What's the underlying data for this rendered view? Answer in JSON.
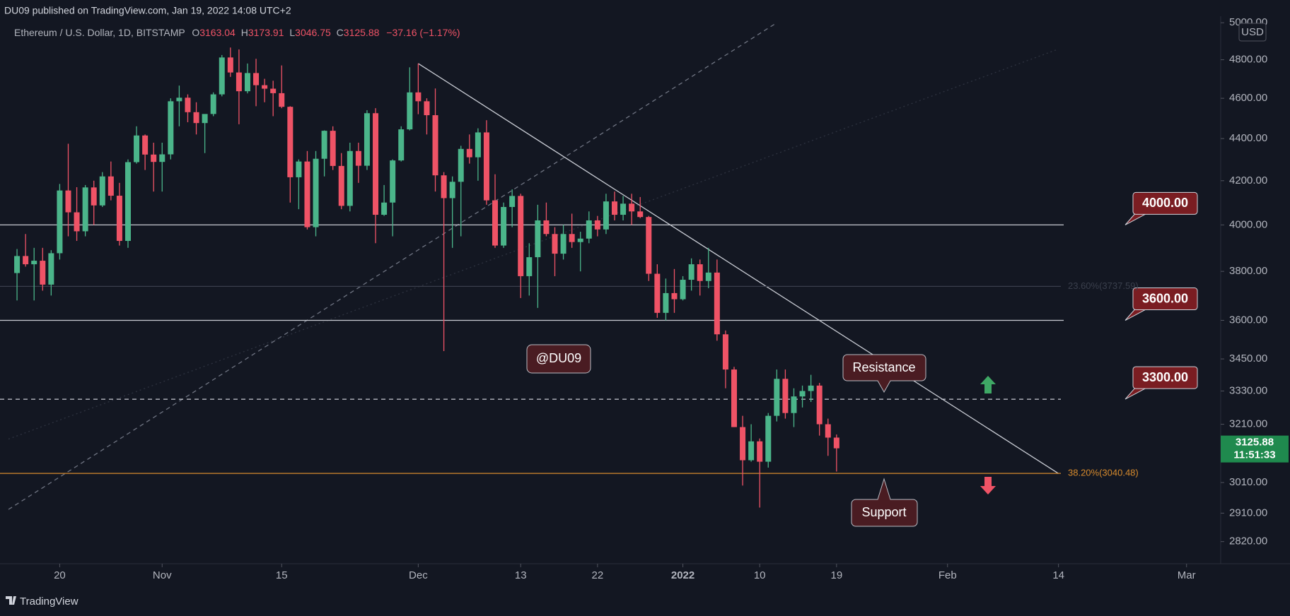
{
  "chart_data": {
    "type": "candlestick",
    "publisher_line": "DU09 published on TradingView.com, Jan 19, 2022 14:08 UTC+2",
    "symbol": "Ethereum / U.S. Dollar, 1D, BITSTAMP",
    "ohlc_letters": [
      "O",
      "H",
      "L",
      "C"
    ],
    "change": "−37.16 (−1.17%)",
    "currency": "USD",
    "countdown": "11:51:33",
    "footer": "TradingView",
    "log_scale": true,
    "grid": false,
    "up_color": "#4bb58a",
    "down_color": "#ef5366",
    "x": [
      "Oct 15",
      "Oct 16",
      "Oct 17",
      "Oct 18",
      "Oct 19",
      "Oct 20",
      "Oct 21",
      "Oct 22",
      "Oct 23",
      "Oct 24",
      "Oct 25",
      "Oct 26",
      "Oct 27",
      "Oct 28",
      "Oct 29",
      "Oct 30",
      "Oct 31",
      "Nov 1",
      "Nov 2",
      "Nov 3",
      "Nov 4",
      "Nov 5",
      "Nov 6",
      "Nov 7",
      "Nov 8",
      "Nov 9",
      "Nov 10",
      "Nov 11",
      "Nov 12",
      "Nov 13",
      "Nov 14",
      "Nov 15",
      "Nov 16",
      "Nov 17",
      "Nov 18",
      "Nov 19",
      "Nov 20",
      "Nov 21",
      "Nov 22",
      "Nov 23",
      "Nov 24",
      "Nov 25",
      "Nov 26",
      "Nov 27",
      "Nov 28",
      "Nov 29",
      "Nov 30",
      "Dec 1",
      "Dec 2",
      "Dec 3",
      "Dec 4",
      "Dec 5",
      "Dec 6",
      "Dec 7",
      "Dec 8",
      "Dec 9",
      "Dec 10",
      "Dec 11",
      "Dec 12",
      "Dec 13",
      "Dec 14",
      "Dec 15",
      "Dec 16",
      "Dec 17",
      "Dec 18",
      "Dec 19",
      "Dec 20",
      "Dec 21",
      "Dec 22",
      "Dec 23",
      "Dec 24",
      "Dec 25",
      "Dec 26",
      "Dec 27",
      "Dec 28",
      "Dec 29",
      "Dec 30",
      "Dec 31",
      "Jan 1",
      "Jan 2",
      "Jan 3",
      "Jan 4",
      "Jan 5",
      "Jan 6",
      "Jan 7",
      "Jan 8",
      "Jan 9",
      "Jan 10",
      "Jan 11",
      "Jan 12",
      "Jan 13",
      "Jan 14",
      "Jan 15",
      "Jan 16",
      "Jan 17",
      "Jan 18",
      "Jan 19"
    ],
    "open": [
      3793,
      3865,
      3830,
      3845,
      3745,
      3877,
      4155,
      4056,
      3972,
      4169,
      4087,
      4220,
      4131,
      3930,
      4287,
      4415,
      4323,
      4288,
      4324,
      4585,
      4603,
      4530,
      4476,
      4521,
      4620,
      4812,
      4733,
      4636,
      4730,
      4667,
      4649,
      4626,
      4557,
      4216,
      4290,
      3990,
      4303,
      4438,
      4269,
      4085,
      4340,
      4270,
      4525,
      4045,
      4100,
      4295,
      4445,
      4630,
      4585,
      4515,
      4225,
      4120,
      4195,
      4350,
      4310,
      4430,
      4110,
      3910,
      4080,
      4130,
      3780,
      3860,
      4020,
      3960,
      3875,
      3960,
      3925,
      3940,
      4020,
      3980,
      4105,
      4045,
      4095,
      4060,
      4035,
      3790,
      3630,
      3710,
      3685,
      3765,
      3830,
      3760,
      3795,
      3545,
      3410,
      3200,
      3085,
      3150,
      3080,
      3240,
      3375,
      3250,
      3310,
      3330,
      3350,
      3210,
      3163.04
    ],
    "high": [
      3895,
      3960,
      3900,
      3900,
      3890,
      4185,
      4375,
      4170,
      4180,
      4200,
      4240,
      4290,
      4190,
      4300,
      4460,
      4420,
      4380,
      4380,
      4600,
      4665,
      4620,
      4580,
      4520,
      4630,
      4825,
      4865,
      4855,
      4780,
      4805,
      4700,
      4690,
      4770,
      4560,
      4300,
      4340,
      4340,
      4440,
      4460,
      4330,
      4380,
      4380,
      4540,
      4550,
      4180,
      4300,
      4460,
      4760,
      4780,
      4600,
      4650,
      4240,
      4220,
      4365,
      4420,
      4450,
      4490,
      4230,
      4100,
      4160,
      4140,
      3920,
      4090,
      4100,
      3990,
      4000,
      4050,
      3970,
      4060,
      4040,
      4140,
      4150,
      4130,
      4140,
      4125,
      4040,
      3830,
      3770,
      3810,
      3780,
      3855,
      3850,
      3900,
      3850,
      3560,
      3420,
      3240,
      3210,
      3160,
      3250,
      3410,
      3410,
      3340,
      3350,
      3390,
      3360,
      3230,
      3173.91
    ],
    "low": [
      3680,
      3820,
      3680,
      3720,
      3700,
      3850,
      3950,
      3930,
      3950,
      4000,
      4080,
      4110,
      3910,
      3900,
      4280,
      4250,
      4150,
      4150,
      4300,
      4460,
      4480,
      4420,
      4330,
      4510,
      4610,
      4710,
      4470,
      4625,
      4560,
      4580,
      4510,
      4550,
      4100,
      4070,
      3980,
      3950,
      4220,
      4250,
      4070,
      4060,
      4190,
      4250,
      3920,
      4040,
      3950,
      4290,
      4440,
      4520,
      4420,
      4150,
      3480,
      3900,
      3950,
      4280,
      4200,
      4090,
      3900,
      3900,
      3990,
      3690,
      3700,
      3650,
      3950,
      3780,
      3850,
      3900,
      3800,
      3920,
      3950,
      3960,
      4020,
      4020,
      4000,
      4030,
      3760,
      3610,
      3600,
      3630,
      3680,
      3720,
      3700,
      3730,
      3520,
      3340,
      3200,
      3000,
      3080,
      2928,
      3060,
      3220,
      3230,
      3200,
      3270,
      3290,
      3170,
      3100,
      3046.75
    ],
    "close": [
      3865,
      3830,
      3845,
      3745,
      3877,
      4155,
      4056,
      3972,
      4169,
      4087,
      4220,
      4131,
      3930,
      4287,
      4415,
      4323,
      4288,
      4324,
      4585,
      4603,
      4530,
      4476,
      4521,
      4620,
      4812,
      4733,
      4636,
      4730,
      4667,
      4649,
      4626,
      4557,
      4216,
      4290,
      3990,
      4303,
      4438,
      4269,
      4085,
      4340,
      4270,
      4525,
      4045,
      4100,
      4295,
      4445,
      4630,
      4585,
      4515,
      4225,
      4120,
      4195,
      4350,
      4310,
      4430,
      4110,
      3910,
      4080,
      4130,
      3780,
      3860,
      4020,
      3960,
      3875,
      3960,
      3925,
      3940,
      4020,
      3980,
      4105,
      4045,
      4095,
      4060,
      4035,
      3790,
      3630,
      3710,
      3685,
      3765,
      3830,
      3760,
      3795,
      3545,
      3410,
      3200,
      3085,
      3150,
      3080,
      3240,
      3375,
      3250,
      3310,
      3330,
      3350,
      3210,
      3163,
      3125.88
    ],
    "xlim": [
      "Oct 14",
      "Mar 5"
    ],
    "xticks": [
      {
        "value": "Oct 20",
        "label": "20"
      },
      {
        "value": "Nov 1",
        "label": "Nov"
      },
      {
        "value": "Nov 15",
        "label": "15"
      },
      {
        "value": "Dec 1",
        "label": "Dec"
      },
      {
        "value": "Dec 13",
        "label": "13"
      },
      {
        "value": "Dec 22",
        "label": "22"
      },
      {
        "value": "Jan 1",
        "label": "2022"
      },
      {
        "value": "Jan 10",
        "label": "10"
      },
      {
        "value": "Jan 19",
        "label": "19"
      },
      {
        "value": "Feb 1",
        "label": "Feb"
      },
      {
        "value": "Feb 14",
        "label": "14"
      },
      {
        "value": "Mar 1",
        "label": "Mar"
      }
    ],
    "ylim": [
      2752,
      5036
    ],
    "yticks": [
      {
        "value": 5000,
        "label": "5000.00"
      },
      {
        "value": 4800,
        "label": "4800.00"
      },
      {
        "value": 4600,
        "label": "4600.00"
      },
      {
        "value": 4400,
        "label": "4400.00"
      },
      {
        "value": 4200,
        "label": "4200.00"
      },
      {
        "value": 4000,
        "label": "4000.00"
      },
      {
        "value": 3800,
        "label": "3800.00"
      },
      {
        "value": 3600,
        "label": "3600.00"
      },
      {
        "value": 3450,
        "label": "3450.00"
      },
      {
        "value": 3330,
        "label": "3330.00"
      },
      {
        "value": 3210,
        "label": "3210.00"
      },
      {
        "value": 3010,
        "label": "3010.00"
      },
      {
        "value": 2910,
        "label": "2910.00"
      },
      {
        "value": 2820,
        "label": "2820.00"
      }
    ],
    "levels": [
      {
        "value": 4000,
        "label": "4000.00",
        "style": "solid"
      },
      {
        "value": 3600,
        "label": "3600.00",
        "style": "solid"
      },
      {
        "value": 3300,
        "label": "3300.00",
        "style": "dashed"
      }
    ],
    "fib_levels": [
      {
        "value": 3040.48,
        "label": "38.20%(3040.48)",
        "color": "#d68a2d"
      },
      {
        "value": 3737.59,
        "label": "23.60%(3737.59)",
        "color": "#3a3f4c"
      }
    ],
    "trendlines": [
      {
        "start": {
          "x": "Dec 1",
          "y": 4780
        },
        "end": {
          "x": "Feb 14",
          "y": 3040
        },
        "style": "solid",
        "color": "#c9ccd4"
      },
      {
        "start": {
          "x": "Oct 14",
          "y": 2922
        },
        "end": {
          "x": "Jan 12",
          "y": 5000
        },
        "style": "dashed",
        "color": "#6f7482"
      },
      {
        "start": {
          "x": "Oct 14",
          "y": 3158
        },
        "end": {
          "x": "Feb 14",
          "y": 4857
        },
        "style": "dotted",
        "color": "#2e3340"
      }
    ],
    "watermark": "@DU09",
    "resistance_label": "Resistance",
    "support_label": "Support"
  }
}
